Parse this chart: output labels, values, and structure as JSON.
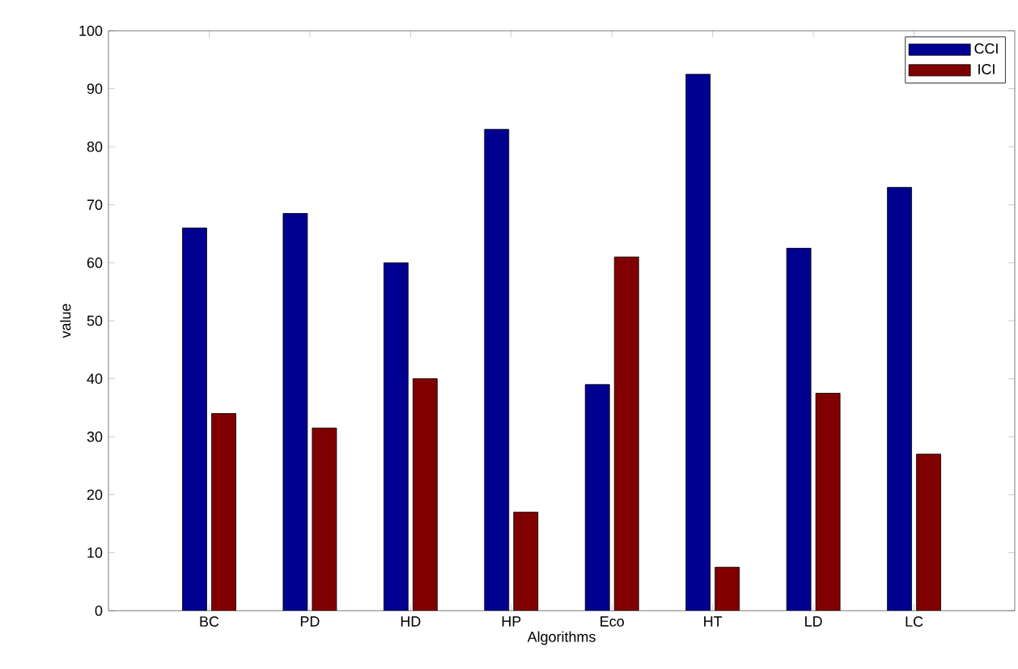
{
  "chart_data": {
    "type": "bar",
    "xlabel": "Algorithms",
    "ylabel": "value",
    "categories": [
      "BC",
      "PD",
      "HD",
      "HP",
      "Eco",
      "HT",
      "LD",
      "LC"
    ],
    "series": [
      {
        "name": "CCI",
        "color": "#000090",
        "values": [
          66,
          68.5,
          60,
          83,
          39,
          92.5,
          62.5,
          73
        ]
      },
      {
        "name": "ICI",
        "color": "#800000",
        "values": [
          34,
          31.5,
          40,
          17,
          61,
          7.5,
          37.5,
          27
        ]
      }
    ],
    "ylim": [
      0,
      100
    ],
    "yticks": [
      0,
      10,
      20,
      30,
      40,
      50,
      60,
      70,
      80,
      90,
      100
    ],
    "grid": false,
    "legend": "top right"
  }
}
